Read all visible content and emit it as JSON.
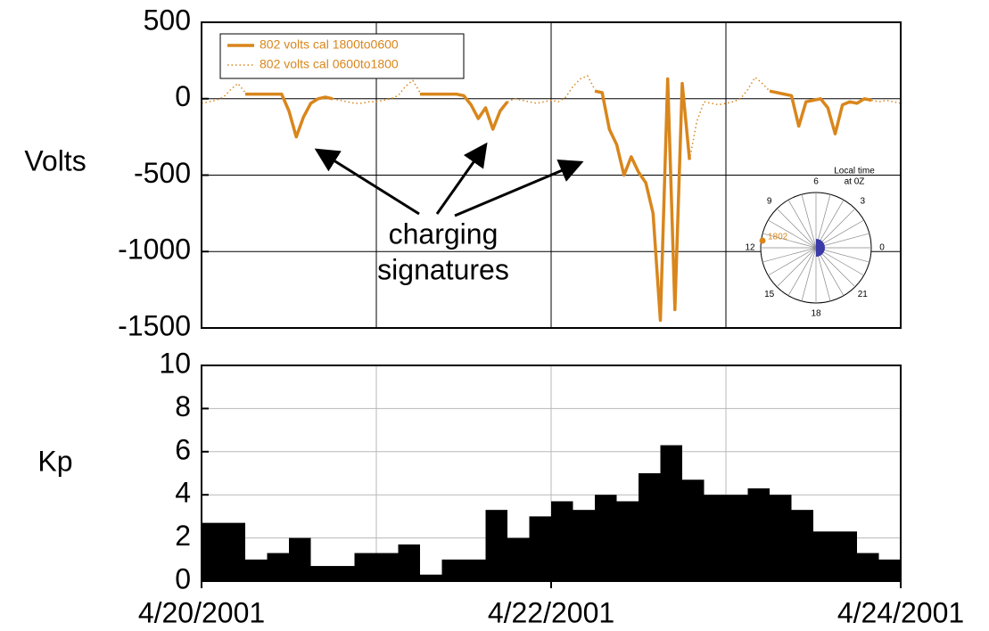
{
  "chart_data": [
    {
      "type": "line",
      "ylabel": "Volts",
      "xlim": [
        0,
        96
      ],
      "xgrid": [
        24,
        48,
        72
      ],
      "ylim": [
        -1500,
        500
      ],
      "yticks": [
        500,
        0,
        -500,
        -1000,
        -1500
      ],
      "grid": true,
      "legend": "top-left",
      "annotation_lines": [
        "charging",
        "signatures"
      ],
      "x": [
        0,
        1,
        2,
        3,
        4,
        5,
        6,
        7,
        8,
        9,
        10,
        11,
        12,
        13,
        14,
        15,
        16,
        17,
        18,
        19,
        20,
        21,
        22,
        23,
        24,
        25,
        26,
        27,
        28,
        29,
        30,
        31,
        32,
        33,
        34,
        35,
        36,
        37,
        38,
        39,
        40,
        41,
        42,
        43,
        44,
        45,
        46,
        47,
        48,
        49,
        50,
        51,
        52,
        53,
        54,
        55,
        56,
        57,
        58,
        59,
        60,
        61,
        62,
        63,
        64,
        65,
        66,
        67,
        68,
        69,
        70,
        71,
        72,
        73,
        74,
        75,
        76,
        77,
        78,
        79,
        80,
        81,
        82,
        83,
        84,
        85,
        86,
        87,
        88,
        89,
        90,
        91,
        92,
        93,
        94,
        95,
        96
      ],
      "series": [
        {
          "name": "802 volts cal 1800to0600",
          "color": "#d9861c",
          "style": "solid",
          "values": [
            null,
            null,
            null,
            null,
            null,
            null,
            30,
            30,
            30,
            30,
            30,
            30,
            -80,
            -250,
            -120,
            -30,
            0,
            10,
            0,
            null,
            null,
            null,
            null,
            null,
            null,
            null,
            null,
            null,
            null,
            null,
            30,
            30,
            30,
            30,
            30,
            30,
            20,
            -40,
            -130,
            -60,
            -200,
            -80,
            -20,
            null,
            null,
            null,
            null,
            null,
            null,
            null,
            null,
            null,
            null,
            null,
            50,
            40,
            -200,
            -300,
            -500,
            -380,
            -480,
            -550,
            -750,
            -1450,
            130,
            -1380,
            100,
            -400,
            null,
            null,
            null,
            null,
            null,
            null,
            null,
            null,
            null,
            null,
            50,
            40,
            30,
            20,
            -180,
            -20,
            -10,
            0,
            -60,
            -230,
            -40,
            -20,
            -30,
            0,
            -10,
            null,
            null,
            null,
            null
          ]
        },
        {
          "name": "802 volts cal 0600to1800",
          "color": "#d9861c",
          "style": "dotted",
          "values": [
            -30,
            -20,
            -10,
            10,
            60,
            100,
            40,
            null,
            null,
            null,
            null,
            null,
            null,
            null,
            null,
            null,
            null,
            null,
            0,
            -10,
            -20,
            -30,
            -30,
            -20,
            -20,
            -10,
            0,
            20,
            80,
            120,
            40,
            null,
            null,
            null,
            null,
            null,
            null,
            null,
            null,
            null,
            null,
            null,
            -20,
            0,
            -10,
            -20,
            -30,
            -20,
            -10,
            -20,
            10,
            80,
            130,
            150,
            60,
            null,
            null,
            null,
            null,
            null,
            null,
            null,
            null,
            null,
            null,
            null,
            null,
            -400,
            -150,
            -20,
            -30,
            -40,
            -30,
            -20,
            0,
            60,
            140,
            100,
            50,
            null,
            null,
            null,
            null,
            null,
            null,
            null,
            null,
            null,
            null,
            null,
            null,
            null,
            -10,
            -20,
            -10,
            -20,
            -30
          ]
        }
      ],
      "inset": {
        "title_lines": [
          "Local time",
          "at 0Z"
        ],
        "hours": [
          0,
          3,
          6,
          9,
          12,
          15,
          18,
          21
        ],
        "marker_label": "1802"
      }
    },
    {
      "type": "histogram",
      "ylabel": "Kp",
      "color": "#000000",
      "xlim": [
        0,
        96
      ],
      "xgrid": [
        24,
        48,
        72
      ],
      "xticks": [
        {
          "value": 0,
          "label": "4/20/2001"
        },
        {
          "value": 48,
          "label": "4/22/2001"
        },
        {
          "value": 96,
          "label": "4/24/2001"
        }
      ],
      "ylim": [
        0,
        10
      ],
      "yticks": [
        0,
        2,
        4,
        6,
        8,
        10
      ],
      "grid": true,
      "bins": [
        0,
        3,
        6,
        9,
        12,
        15,
        18,
        21,
        24,
        27,
        30,
        33,
        36,
        39,
        42,
        45,
        48,
        51,
        54,
        57,
        60,
        63,
        66,
        69,
        72,
        75,
        78,
        81,
        84,
        87,
        90,
        93,
        96
      ],
      "values": [
        2.7,
        2.7,
        1.0,
        1.3,
        2.0,
        0.7,
        0.7,
        1.3,
        1.3,
        1.7,
        0.3,
        1.0,
        1.0,
        3.3,
        2.0,
        3.0,
        3.7,
        3.3,
        4.0,
        3.7,
        5.0,
        6.3,
        4.7,
        4.0,
        4.0,
        4.3,
        4.0,
        3.3,
        2.3,
        2.3,
        1.3,
        1.0
      ]
    }
  ]
}
